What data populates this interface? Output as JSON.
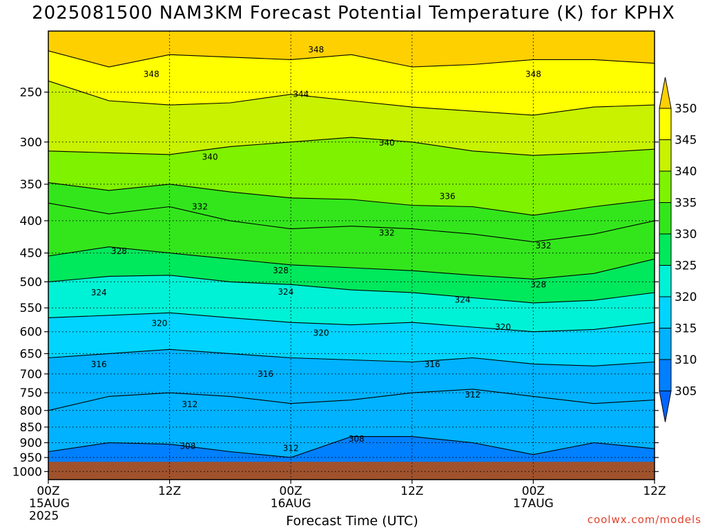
{
  "title": "2025081500 NAM3KM Forecast Potential Temperature (K) for KPHX",
  "credit": "coolwx.com/models",
  "chart_data": {
    "type": "contour",
    "title": "2025081500 NAM3KM Forecast Potential Temperature (K) for KPHX",
    "xlabel": "Forecast Time (UTC)",
    "ylabel": "",
    "x_range_hours": [
      0,
      60
    ],
    "y_axis": "pressure (log scale, inverted)",
    "ylim": [
      1030,
      200
    ],
    "y_ticks": [
      250,
      300,
      350,
      400,
      450,
      500,
      550,
      600,
      650,
      700,
      750,
      800,
      850,
      900,
      950,
      1000
    ],
    "x_ticks": [
      {
        "hour": 0,
        "lines": [
          "00Z",
          "15AUG",
          "2025"
        ]
      },
      {
        "hour": 12,
        "lines": [
          "12Z"
        ]
      },
      {
        "hour": 24,
        "lines": [
          "00Z",
          "16AUG"
        ]
      },
      {
        "hour": 36,
        "lines": [
          "12Z"
        ]
      },
      {
        "hour": 48,
        "lines": [
          "00Z",
          "17AUG"
        ]
      },
      {
        "hour": 60,
        "lines": [
          "12Z"
        ]
      }
    ],
    "colorbar": {
      "levels": [
        305,
        310,
        315,
        320,
        325,
        330,
        335,
        340,
        345,
        350
      ],
      "colors": [
        "#0066ff",
        "#007fff",
        "#00b2ff",
        "#00d4ff",
        "#00f2d6",
        "#00e85c",
        "#33e61c",
        "#7ff200",
        "#c8f200",
        "#ffff00",
        "#ffd000"
      ]
    },
    "ground_color": "#a0522d",
    "contours": [
      {
        "value": 348,
        "p": [
          215,
          228,
          218,
          220,
          222,
          218,
          228,
          226,
          222,
          222,
          225
        ]
      },
      {
        "value": 344,
        "p": [
          240,
          258,
          262,
          260,
          252,
          258,
          264,
          268,
          272,
          264,
          262
        ]
      },
      {
        "value": 340,
        "p": [
          310,
          312,
          314,
          305,
          300,
          295,
          300,
          310,
          315,
          312,
          308
        ]
      },
      {
        "value": 336,
        "p": [
          348,
          358,
          350,
          360,
          368,
          370,
          378,
          380,
          392,
          380,
          370
        ]
      },
      {
        "value": 332,
        "p": [
          375,
          390,
          380,
          400,
          412,
          408,
          412,
          420,
          432,
          420,
          400
        ]
      },
      {
        "value": 328,
        "p": [
          455,
          440,
          450,
          460,
          470,
          475,
          480,
          488,
          495,
          485,
          460
        ]
      },
      {
        "value": 324,
        "p": [
          500,
          490,
          488,
          500,
          505,
          515,
          520,
          530,
          540,
          535,
          520
        ]
      },
      {
        "value": 320,
        "p": [
          570,
          565,
          560,
          570,
          580,
          585,
          580,
          590,
          600,
          595,
          580
        ]
      },
      {
        "value": 316,
        "p": [
          660,
          650,
          640,
          650,
          660,
          665,
          670,
          660,
          675,
          680,
          670
        ]
      },
      {
        "value": 312,
        "p": [
          800,
          760,
          750,
          760,
          780,
          770,
          750,
          740,
          760,
          780,
          770
        ]
      },
      {
        "value": 308,
        "p": [
          930,
          900,
          905,
          930,
          950,
          880,
          880,
          900,
          940,
          900,
          920
        ]
      }
    ],
    "contour_labels": [
      {
        "value": "348",
        "hour": 10.2,
        "p": 234
      },
      {
        "value": "348",
        "hour": 26.5,
        "p": 214
      },
      {
        "value": "348",
        "hour": 48.0,
        "p": 234
      },
      {
        "value": "344",
        "hour": 25.0,
        "p": 252
      },
      {
        "value": "340",
        "hour": 16.0,
        "p": 317
      },
      {
        "value": "340",
        "hour": 33.5,
        "p": 301
      },
      {
        "value": "336",
        "hour": 39.5,
        "p": 366
      },
      {
        "value": "332",
        "hour": 15.0,
        "p": 380
      },
      {
        "value": "332",
        "hour": 33.5,
        "p": 418
      },
      {
        "value": "332",
        "hour": 49.0,
        "p": 438
      },
      {
        "value": "328",
        "hour": 7.0,
        "p": 447
      },
      {
        "value": "328",
        "hour": 23.0,
        "p": 480
      },
      {
        "value": "328",
        "hour": 48.5,
        "p": 505
      },
      {
        "value": "324",
        "hour": 5.0,
        "p": 520
      },
      {
        "value": "324",
        "hour": 23.5,
        "p": 519
      },
      {
        "value": "324",
        "hour": 41.0,
        "p": 534
      },
      {
        "value": "320",
        "hour": 11.0,
        "p": 582
      },
      {
        "value": "320",
        "hour": 27.0,
        "p": 603
      },
      {
        "value": "320",
        "hour": 45.0,
        "p": 590
      },
      {
        "value": "316",
        "hour": 5.0,
        "p": 676
      },
      {
        "value": "316",
        "hour": 21.5,
        "p": 700
      },
      {
        "value": "316",
        "hour": 38.0,
        "p": 676
      },
      {
        "value": "312",
        "hour": 14.0,
        "p": 782
      },
      {
        "value": "312",
        "hour": 42.0,
        "p": 755
      },
      {
        "value": "312",
        "hour": 24.0,
        "p": 918
      },
      {
        "value": "308",
        "hour": 13.8,
        "p": 912
      },
      {
        "value": "308",
        "hour": 30.5,
        "p": 888
      }
    ]
  },
  "xlabel_text": "Forecast Time (UTC)"
}
